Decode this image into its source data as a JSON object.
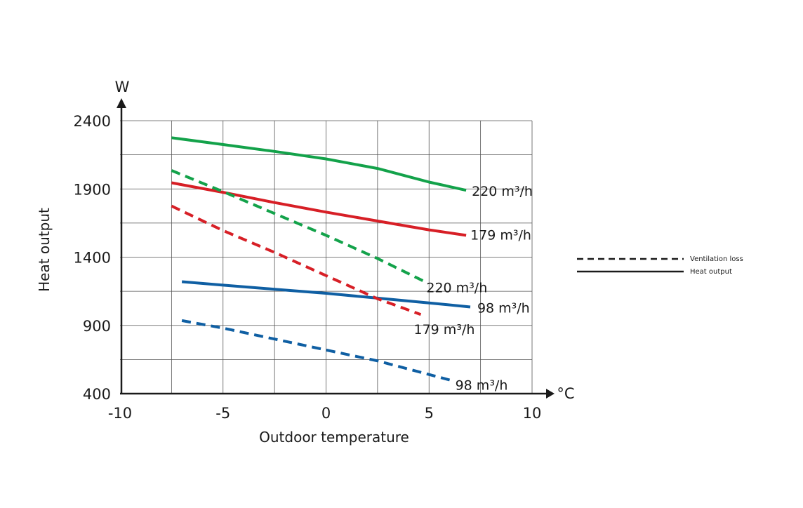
{
  "chart_data": {
    "type": "line",
    "xlabel": "Outdoor temperature",
    "ylabel": "Heat output",
    "x_unit": "°C",
    "y_unit": "W",
    "xlim": [
      -10,
      10
    ],
    "ylim": [
      400,
      2400
    ],
    "xticks": [
      -10,
      -5,
      0,
      5,
      10
    ],
    "yticks": [
      400,
      900,
      1400,
      1900,
      2400
    ],
    "grid": true,
    "legend_position": "right",
    "legend": [
      {
        "label": "Ventilation loss",
        "style": "dashed"
      },
      {
        "label": "Heat output",
        "style": "solid"
      }
    ],
    "series": [
      {
        "label": "220 m³/h",
        "kind": "Heat output",
        "style": "solid",
        "color": "#13a24a",
        "x": [
          -7.5,
          -5,
          -2.5,
          0,
          2.5,
          5,
          6.8
        ],
        "y": [
          2275,
          2225,
          2175,
          2120,
          2050,
          1950,
          1890
        ]
      },
      {
        "label": "179 m³/h",
        "kind": "Heat output",
        "style": "solid",
        "color": "#d71f26",
        "x": [
          -7.5,
          -5,
          -2.5,
          0,
          2.5,
          5,
          6.8
        ],
        "y": [
          1945,
          1875,
          1800,
          1730,
          1665,
          1600,
          1560
        ]
      },
      {
        "label": "98 m³/h",
        "kind": "Heat output",
        "style": "solid",
        "color": "#0f5fa3",
        "x": [
          -7,
          -5,
          -2.5,
          0,
          2.5,
          5,
          7
        ],
        "y": [
          1220,
          1195,
          1165,
          1135,
          1100,
          1065,
          1035
        ]
      },
      {
        "label": "220 m³/h",
        "kind": "Ventilation loss",
        "style": "dashed",
        "color": "#13a24a",
        "x": [
          -7.5,
          -5,
          -2.5,
          0,
          2.5,
          4.8
        ],
        "y": [
          2035,
          1880,
          1720,
          1560,
          1390,
          1220
        ]
      },
      {
        "label": "179 m³/h",
        "kind": "Ventilation loss",
        "style": "dashed",
        "color": "#d71f26",
        "x": [
          -7.5,
          -5,
          -2.5,
          0,
          2.5,
          4.6
        ],
        "y": [
          1775,
          1595,
          1435,
          1265,
          1095,
          980
        ]
      },
      {
        "label": "98 m³/h",
        "kind": "Ventilation loss",
        "style": "dashed",
        "color": "#0f5fa3",
        "x": [
          -7,
          -5,
          -2.5,
          0,
          2.5,
          6
        ],
        "y": [
          935,
          880,
          800,
          720,
          640,
          500
        ]
      }
    ]
  }
}
